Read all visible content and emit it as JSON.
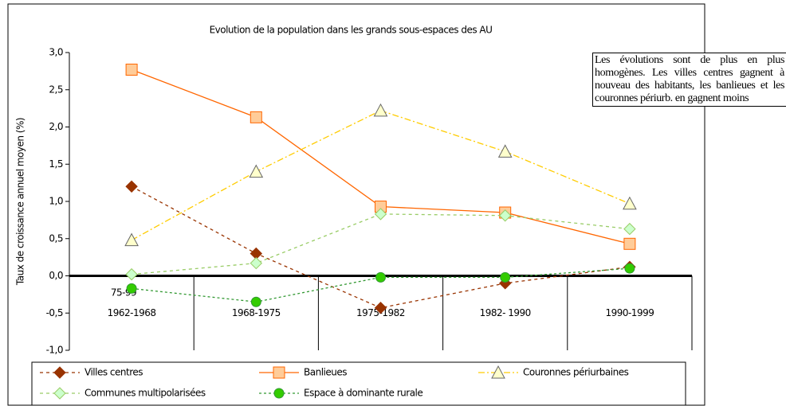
{
  "chart_data": {
    "type": "line",
    "title": "Evolution de la population dans les grands sous-espaces des AU",
    "y_label": "Taux de croissance annuel moyen (%)",
    "categories": [
      "1962-1968",
      "1968-1975",
      "1975-1982",
      "1982- 1990",
      "1990-1999"
    ],
    "series": [
      {
        "name": "Villes centres",
        "color": "#993300",
        "marker": "diamond",
        "fill": "#993300",
        "values": [
          1.2,
          0.3,
          -0.43,
          -0.1,
          0.12
        ]
      },
      {
        "name": "Banlieues",
        "color": "#FF6600",
        "marker": "square",
        "fill": "#FFCC99",
        "values": [
          2.77,
          2.13,
          0.93,
          0.85,
          0.43
        ]
      },
      {
        "name": "Couronnes périurbaines",
        "color": "#FFCC00",
        "marker": "triangle",
        "fill": "#FFFFCC",
        "values": [
          0.48,
          1.4,
          2.22,
          1.67,
          0.97
        ]
      },
      {
        "name": "Communes multipolarisées",
        "color": "#99CC66",
        "marker": "diamond",
        "fill": "#CCFFCC",
        "values": [
          0.02,
          0.17,
          0.83,
          0.81,
          0.63
        ]
      },
      {
        "name": "Espace à dominante rurale",
        "color": "#339933",
        "marker": "circle",
        "fill": "#33CC00",
        "values": [
          -0.17,
          -0.35,
          -0.02,
          -0.02,
          0.1
        ]
      }
    ],
    "ylim": [
      -1,
      3
    ],
    "yticks": [
      {
        "value": -1,
        "label": "-1,0"
      },
      {
        "value": -0.5,
        "label": "-0,5"
      },
      {
        "value": 0,
        "label": "0,0"
      },
      {
        "value": 0.5,
        "label": "0,5"
      },
      {
        "value": 1,
        "label": "1,0"
      },
      {
        "value": 1.5,
        "label": "1,5"
      },
      {
        "value": 2,
        "label": "2,0"
      },
      {
        "value": 2.5,
        "label": "2,5"
      },
      {
        "value": 3,
        "label": "3,0"
      }
    ],
    "grid": false,
    "annotations": [
      "75-99"
    ],
    "note": "Les évolutions sont de plus en plus homogènes. Les villes centres gagnent à nouveau des habitants, les banlieues et les couronnes périurb. en gagnent moins",
    "legend": "bottom"
  }
}
